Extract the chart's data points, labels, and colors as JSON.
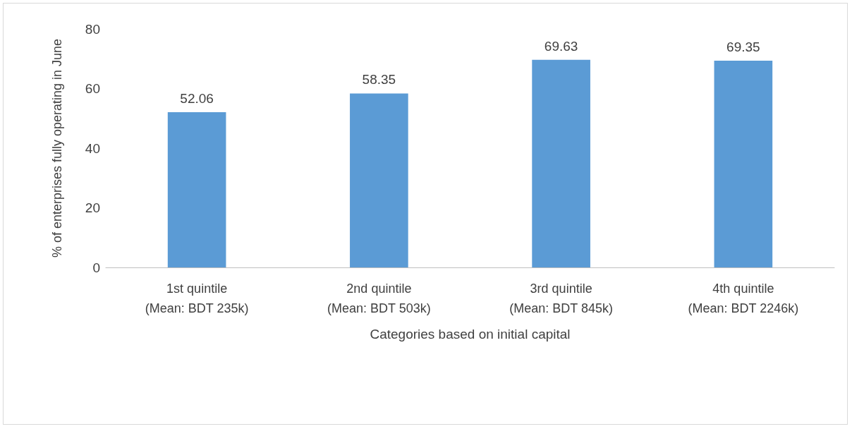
{
  "chart_data": {
    "type": "bar",
    "xlabel": "Categories based on initial capital",
    "ylabel": "% of enterprises fully operating in June",
    "categories": [
      "1st quintile\n(Mean: BDT 235k)",
      "2nd quintile\n(Mean: BDT 503k)",
      "3rd quintile\n(Mean: BDT 845k)",
      "4th quintile\n(Mean: BDT 2246k)"
    ],
    "values": [
      52.06,
      58.35,
      69.63,
      69.35
    ],
    "color": "#5b9bd5",
    "ylim": [
      0,
      80
    ],
    "yticks": [
      0,
      20,
      40,
      60,
      80
    ],
    "grid": false,
    "data_labels": true
  }
}
